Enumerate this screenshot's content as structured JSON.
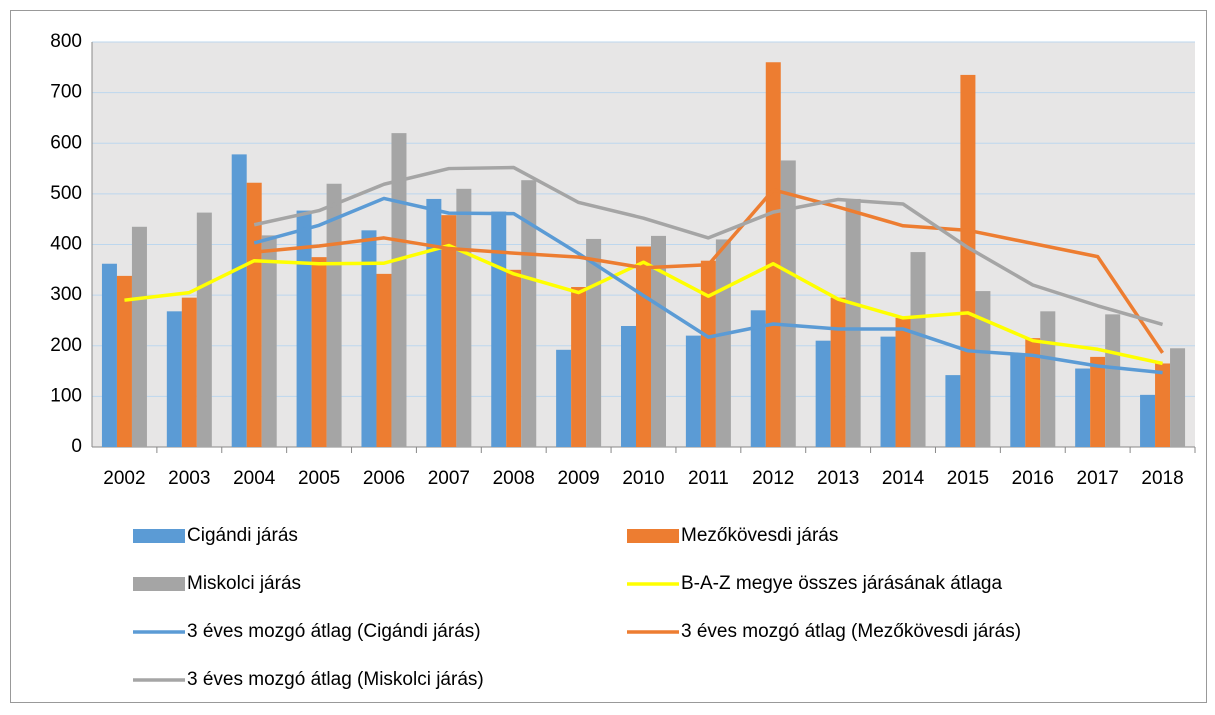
{
  "chart_data": {
    "type": "bar",
    "categories": [
      "2002",
      "2003",
      "2004",
      "2005",
      "2006",
      "2007",
      "2008",
      "2009",
      "2010",
      "2011",
      "2012",
      "2013",
      "2014",
      "2015",
      "2016",
      "2017",
      "2018"
    ],
    "ylim": [
      0,
      800
    ],
    "yticks": [
      0,
      100,
      200,
      300,
      400,
      500,
      600,
      700,
      800
    ],
    "grid": true,
    "series": [
      {
        "name": "Cigándi járás",
        "type": "bar",
        "color": "#5b9bd5",
        "values": [
          362,
          268,
          578,
          467,
          428,
          490,
          465,
          192,
          239,
          220,
          270,
          210,
          218,
          142,
          182,
          155,
          103
        ]
      },
      {
        "name": "Mezőkövesdi járás",
        "type": "bar",
        "color": "#ed7d31",
        "values": [
          338,
          295,
          522,
          375,
          342,
          458,
          350,
          316,
          396,
          368,
          760,
          295,
          255,
          735,
          215,
          178,
          165
        ]
      },
      {
        "name": "Miskolci járás",
        "type": "bar",
        "color": "#a5a5a5",
        "values": [
          435,
          463,
          418,
          520,
          620,
          510,
          527,
          411,
          417,
          410,
          566,
          490,
          385,
          308,
          268,
          262,
          195
        ]
      },
      {
        "name": "B-A-Z megye összes járásának átlaga",
        "type": "line",
        "color": "#ffff00",
        "values": [
          290,
          305,
          368,
          362,
          363,
          398,
          342,
          305,
          365,
          298,
          362,
          292,
          255,
          265,
          210,
          193,
          165
        ]
      },
      {
        "name": "3 éves mozgó átlag (Cigándi járás)",
        "type": "line",
        "color": "#5b9bd5",
        "values": [
          null,
          null,
          403,
          438,
          491,
          462,
          461,
          382,
          299,
          217,
          243,
          233,
          233,
          190,
          181,
          160,
          147
        ]
      },
      {
        "name": "3 éves mozgó átlag (Mezőkövesdi járás)",
        "type": "line",
        "color": "#ed7d31",
        "values": [
          null,
          null,
          385,
          397,
          413,
          392,
          383,
          375,
          354,
          360,
          508,
          474,
          437,
          428,
          402,
          376,
          186
        ]
      },
      {
        "name": "3 éves mozgó átlag (Miskolci járás)",
        "type": "line",
        "color": "#a5a5a5",
        "values": [
          null,
          null,
          439,
          467,
          519,
          550,
          552,
          483,
          452,
          413,
          464,
          489,
          480,
          394,
          320,
          279,
          242
        ]
      }
    ]
  }
}
